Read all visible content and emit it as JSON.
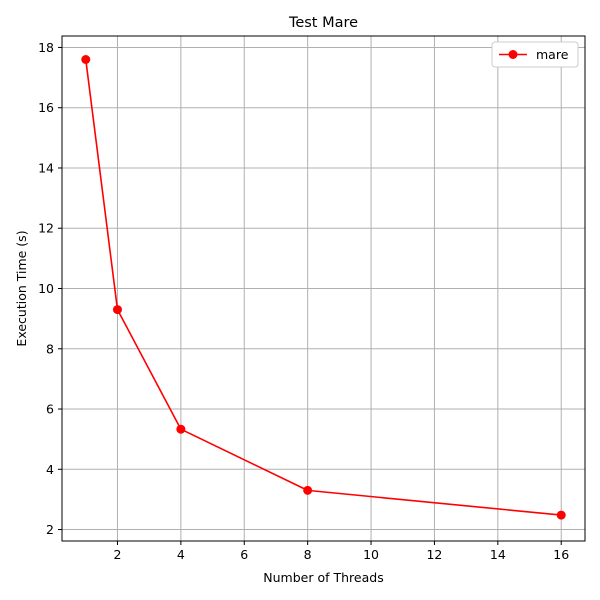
{
  "chart_data": {
    "type": "line",
    "title": "Test Mare",
    "xlabel": "Number of Threads",
    "ylabel": "Execution Time (s)",
    "xlim": [
      0.25,
      16.75
    ],
    "ylim": [
      1.62,
      18.38
    ],
    "xticks": [
      2,
      4,
      6,
      8,
      10,
      12,
      14,
      16
    ],
    "yticks": [
      2,
      4,
      6,
      8,
      10,
      12,
      14,
      16,
      18
    ],
    "grid": true,
    "legend_position": "top-right",
    "series": [
      {
        "name": "mare",
        "color": "#ff0000",
        "marker": "circle",
        "x": [
          1,
          2,
          4,
          8,
          16
        ],
        "y": [
          17.6,
          9.3,
          5.33,
          3.3,
          2.48
        ]
      }
    ]
  }
}
